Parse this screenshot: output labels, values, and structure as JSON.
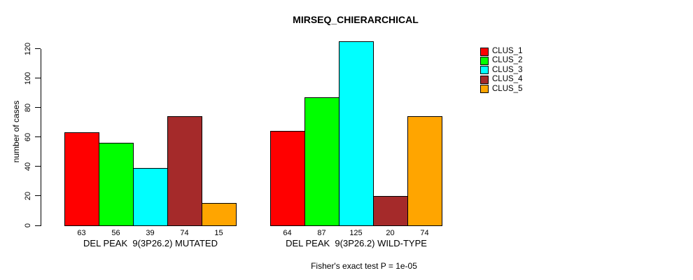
{
  "title": "MIRSEQ_CHIERARCHICAL",
  "chart_data": {
    "type": "bar",
    "title": "MIRSEQ_CHIERARCHICAL",
    "xlabel": "",
    "ylabel": "number of cases",
    "ylim": [
      0,
      125
    ],
    "yticks": [
      0,
      20,
      40,
      60,
      80,
      100,
      120
    ],
    "grid": false,
    "legend_position": "right-outside",
    "categories": [
      "DEL PEAK  9(3P26.2) MUTATED",
      "DEL PEAK  9(3P26.2) WILD-TYPE"
    ],
    "series": [
      {
        "name": "CLUS_1",
        "color": "#FF0000",
        "values": [
          63,
          64
        ]
      },
      {
        "name": "CLUS_2",
        "color": "#00FF00",
        "values": [
          56,
          87
        ]
      },
      {
        "name": "CLUS_3",
        "color": "#00FFFF",
        "values": [
          39,
          125
        ]
      },
      {
        "name": "CLUS_4",
        "color": "#A52A2A",
        "values": [
          74,
          20
        ]
      },
      {
        "name": "CLUS_5",
        "color": "#FFA500",
        "values": [
          15,
          74
        ]
      }
    ],
    "bar_value_labels": [
      [
        63,
        56,
        39,
        74,
        15
      ],
      [
        64,
        87,
        125,
        20,
        74
      ]
    ],
    "bar_border_color": "#000000",
    "axis_color": "#000000",
    "background_color": "#FFFFFF",
    "annotation": "Fisher's exact test P = 1e-05"
  }
}
